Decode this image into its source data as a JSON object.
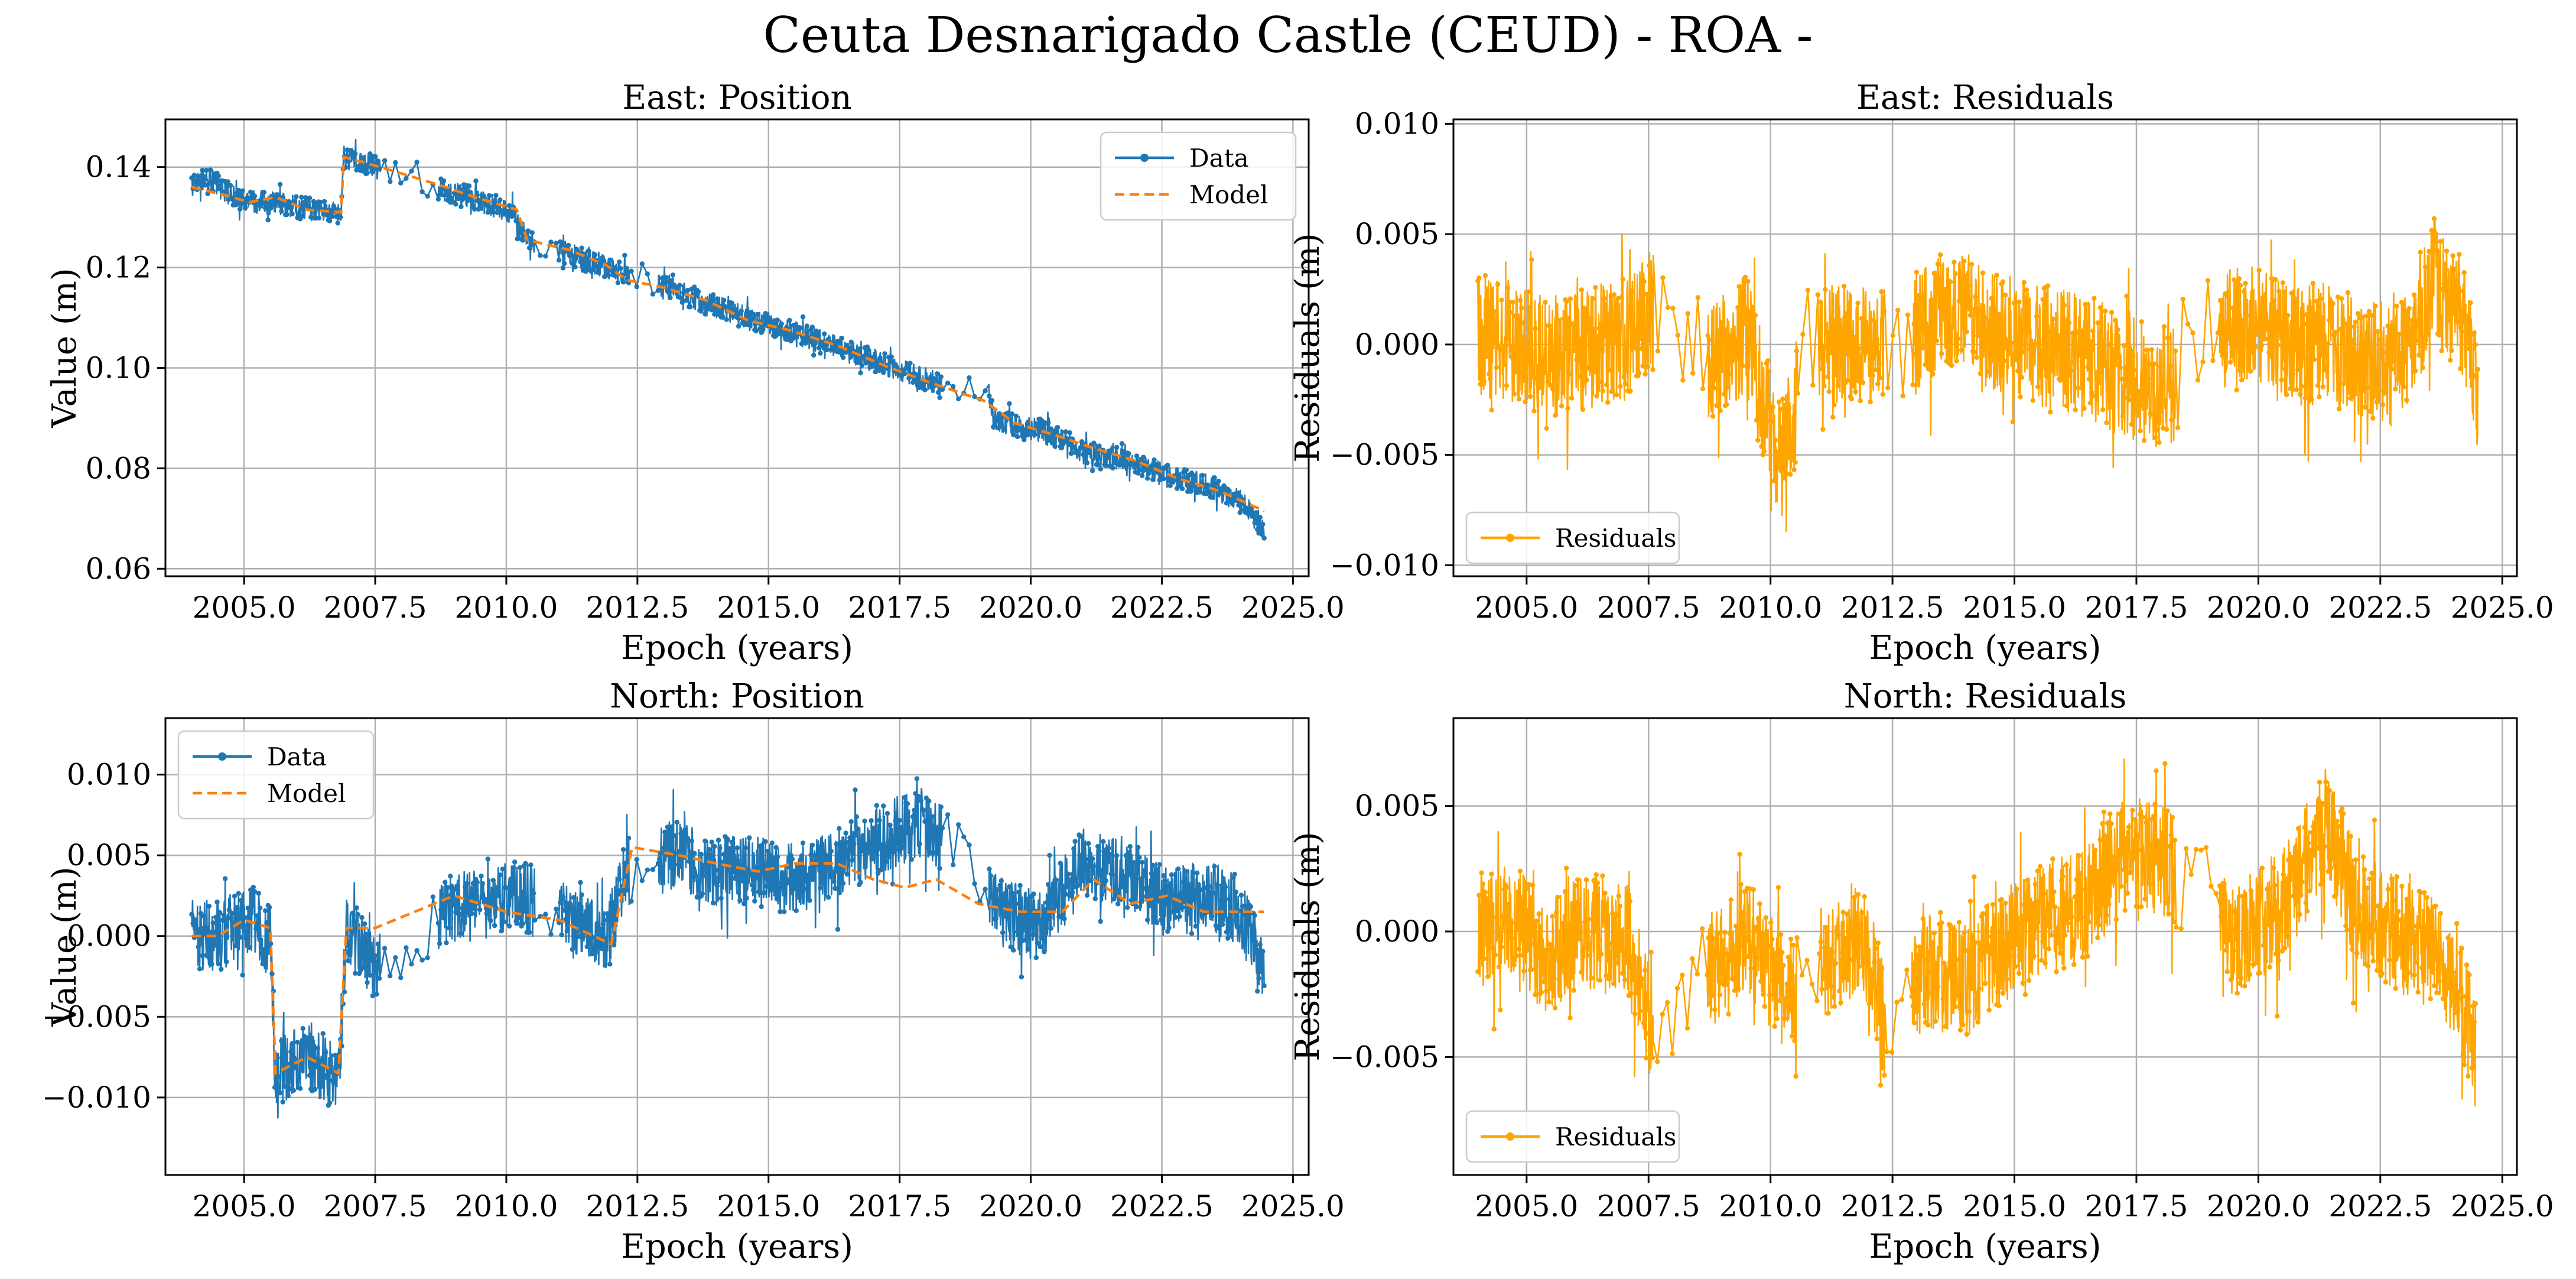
{
  "title": "Ceuta Desnarigado Castle (CEUD) - ROA -",
  "colors": {
    "data": "#1f77b4",
    "model": "#ff7f0e",
    "residuals": "#ffa500",
    "grid": "#b0b0b0",
    "axes": "#000000"
  },
  "chart_data": [
    {
      "id": "east_position",
      "type": "line",
      "title": "East: Position",
      "xlabel": "Epoch (years)",
      "ylabel": "Value (m)",
      "xlim": [
        2003.5,
        2025.3
      ],
      "ylim": [
        0.0585,
        0.1495
      ],
      "xticks": [
        2005.0,
        2007.5,
        2010.0,
        2012.5,
        2015.0,
        2017.5,
        2020.0,
        2022.5,
        2025.0
      ],
      "xticklabels": [
        "2005.0",
        "2007.5",
        "2010.0",
        "2012.5",
        "2015.0",
        "2017.5",
        "2020.0",
        "2022.5",
        "2025.0"
      ],
      "yticks": [
        0.06,
        0.08,
        0.1,
        0.12,
        0.14
      ],
      "yticklabels": [
        "0.06",
        "0.08",
        "0.10",
        "0.12",
        "0.14"
      ],
      "grid": true,
      "legend": {
        "position": "top-right",
        "entries": [
          "Data",
          "Model"
        ]
      },
      "series": [
        {
          "name": "Data",
          "style": "line-dots",
          "color": "#1f77b4",
          "noise": 0.0023,
          "points": [
            [
              2004.0,
              0.1365
            ],
            [
              2004.3,
              0.138
            ],
            [
              2004.8,
              0.134
            ],
            [
              2005.3,
              0.133
            ],
            [
              2005.8,
              0.1325
            ],
            [
              2006.3,
              0.1315
            ],
            [
              2006.85,
              0.1305
            ],
            [
              2006.9,
              0.142
            ],
            [
              2007.4,
              0.1405
            ],
            [
              2008.7,
              0.1355
            ],
            [
              2009.3,
              0.134
            ],
            [
              2010.1,
              0.131
            ],
            [
              2010.4,
              0.1255
            ],
            [
              2011.1,
              0.123
            ],
            [
              2011.8,
              0.1205
            ],
            [
              2012.3,
              0.1185
            ],
            [
              2013.0,
              0.116
            ],
            [
              2013.7,
              0.1135
            ],
            [
              2014.3,
              0.111
            ],
            [
              2015.0,
              0.1085
            ],
            [
              2015.8,
              0.106
            ],
            [
              2016.6,
              0.103
            ],
            [
              2017.4,
              0.1
            ],
            [
              2018.2,
              0.097
            ],
            [
              2019.2,
              0.0945
            ],
            [
              2019.3,
              0.0895
            ],
            [
              2020.2,
              0.0875
            ],
            [
              2021.0,
              0.0835
            ],
            [
              2021.8,
              0.0815
            ],
            [
              2022.6,
              0.0785
            ],
            [
              2023.4,
              0.0765
            ],
            [
              2024.0,
              0.0735
            ],
            [
              2024.45,
              0.068
            ]
          ]
        },
        {
          "name": "Model",
          "style": "dashed",
          "color": "#ff7f0e",
          "noise": 0,
          "points": [
            [
              2004.0,
              0.136
            ],
            [
              2004.6,
              0.1345
            ],
            [
              2005.1,
              0.133
            ],
            [
              2005.6,
              0.134
            ],
            [
              2006.2,
              0.1315
            ],
            [
              2006.85,
              0.131
            ],
            [
              2006.9,
              0.142
            ],
            [
              2007.6,
              0.14
            ],
            [
              2008.7,
              0.1365
            ],
            [
              2009.4,
              0.134
            ],
            [
              2010.2,
              0.1315
            ],
            [
              2010.4,
              0.1255
            ],
            [
              2011.2,
              0.1235
            ],
            [
              2011.9,
              0.1205
            ],
            [
              2012.3,
              0.1175
            ],
            [
              2013.0,
              0.116
            ],
            [
              2013.8,
              0.1135
            ],
            [
              2014.6,
              0.1095
            ],
            [
              2015.4,
              0.1075
            ],
            [
              2016.3,
              0.1045
            ],
            [
              2017.2,
              0.1005
            ],
            [
              2018.1,
              0.097
            ],
            [
              2019.1,
              0.0935
            ],
            [
              2019.7,
              0.089
            ],
            [
              2020.5,
              0.0865
            ],
            [
              2021.2,
              0.084
            ],
            [
              2022.0,
              0.0815
            ],
            [
              2022.8,
              0.078
            ],
            [
              2023.6,
              0.0755
            ],
            [
              2024.45,
              0.0715
            ]
          ]
        }
      ]
    },
    {
      "id": "east_residuals",
      "type": "line",
      "title": "East: Residuals",
      "xlabel": "Epoch (years)",
      "ylabel": "Residuals (m)",
      "xlim": [
        2003.5,
        2025.3
      ],
      "ylim": [
        -0.0105,
        0.0102
      ],
      "xticks": [
        2005.0,
        2007.5,
        2010.0,
        2012.5,
        2015.0,
        2017.5,
        2020.0,
        2022.5,
        2025.0
      ],
      "xticklabels": [
        "2005.0",
        "2007.5",
        "2010.0",
        "2012.5",
        "2015.0",
        "2017.5",
        "2020.0",
        "2022.5",
        "2025.0"
      ],
      "yticks": [
        -0.01,
        -0.005,
        0.0,
        0.005,
        0.01
      ],
      "yticklabels": [
        "−0.010",
        "−0.005",
        "0.000",
        "0.005",
        "0.010"
      ],
      "grid": true,
      "legend": {
        "position": "bottom-left",
        "entries": [
          "Residuals"
        ]
      },
      "series": [
        {
          "name": "Residuals",
          "style": "line-dots",
          "color": "#ffa500",
          "noise": 0.0028,
          "points": [
            [
              2004.0,
              0.0005
            ],
            [
              2004.8,
              0.0
            ],
            [
              2005.6,
              -0.0005
            ],
            [
              2006.4,
              0.0
            ],
            [
              2007.2,
              0.0005
            ],
            [
              2007.5,
              0.0015
            ],
            [
              2008.8,
              -0.001
            ],
            [
              2009.5,
              0.0005
            ],
            [
              2010.2,
              -0.0055
            ],
            [
              2010.8,
              0.0
            ],
            [
              2011.5,
              0.0
            ],
            [
              2012.2,
              0.0
            ],
            [
              2013.0,
              0.0005
            ],
            [
              2013.8,
              0.002
            ],
            [
              2014.5,
              0.0005
            ],
            [
              2015.5,
              0.0
            ],
            [
              2016.5,
              -0.0005
            ],
            [
              2017.3,
              -0.0015
            ],
            [
              2018.2,
              -0.002
            ],
            [
              2019.0,
              0.0005
            ],
            [
              2019.8,
              0.0008
            ],
            [
              2020.6,
              0.0
            ],
            [
              2021.3,
              0.0
            ],
            [
              2022.1,
              -0.0005
            ],
            [
              2022.9,
              -0.001
            ],
            [
              2023.6,
              0.003
            ],
            [
              2024.2,
              0.001
            ],
            [
              2024.5,
              -0.002
            ]
          ]
        }
      ]
    },
    {
      "id": "north_position",
      "type": "line",
      "title": "North: Position",
      "xlabel": "Epoch (years)",
      "ylabel": "Value (m)",
      "xlim": [
        2003.5,
        2025.3
      ],
      "ylim": [
        -0.0148,
        0.0135
      ],
      "xticks": [
        2005.0,
        2007.5,
        2010.0,
        2012.5,
        2015.0,
        2017.5,
        2020.0,
        2022.5,
        2025.0
      ],
      "xticklabels": [
        "2005.0",
        "2007.5",
        "2010.0",
        "2012.5",
        "2015.0",
        "2017.5",
        "2020.0",
        "2022.5",
        "2025.0"
      ],
      "yticks": [
        -0.01,
        -0.005,
        0.0,
        0.005,
        0.01
      ],
      "yticklabels": [
        "−0.010",
        "−0.005",
        "0.000",
        "0.005",
        "0.010"
      ],
      "grid": true,
      "legend": {
        "position": "top-left",
        "entries": [
          "Data",
          "Model"
        ]
      },
      "series": [
        {
          "name": "Data",
          "style": "line-dots",
          "color": "#1f77b4",
          "noise": 0.0022,
          "points": [
            [
              2004.0,
              0.0
            ],
            [
              2004.6,
              0.0
            ],
            [
              2005.1,
              0.0015
            ],
            [
              2005.5,
              -0.0005
            ],
            [
              2005.6,
              -0.0085
            ],
            [
              2006.3,
              -0.0075
            ],
            [
              2006.8,
              -0.009
            ],
            [
              2006.95,
              0.0005
            ],
            [
              2007.5,
              -0.002
            ],
            [
              2008.8,
              0.0015
            ],
            [
              2009.5,
              0.002
            ],
            [
              2010.3,
              0.0025
            ],
            [
              2011.2,
              0.001
            ],
            [
              2011.9,
              -0.0005
            ],
            [
              2012.3,
              0.004
            ],
            [
              2013.2,
              0.005
            ],
            [
              2014.0,
              0.004
            ],
            [
              2014.8,
              0.004
            ],
            [
              2015.5,
              0.0035
            ],
            [
              2016.3,
              0.0045
            ],
            [
              2017.1,
              0.006
            ],
            [
              2017.9,
              0.007
            ],
            [
              2018.6,
              0.0055
            ],
            [
              2019.4,
              0.0015
            ],
            [
              2020.2,
              0.0005
            ],
            [
              2021.0,
              0.0045
            ],
            [
              2021.8,
              0.004
            ],
            [
              2022.6,
              0.002
            ],
            [
              2023.4,
              0.0025
            ],
            [
              2024.0,
              0.0015
            ],
            [
              2024.45,
              -0.0025
            ]
          ]
        },
        {
          "name": "Model",
          "style": "dashed",
          "color": "#ff7f0e",
          "noise": 0,
          "points": [
            [
              2004.0,
              0.0
            ],
            [
              2004.5,
              0.0
            ],
            [
              2005.0,
              0.001
            ],
            [
              2005.5,
              0.0005
            ],
            [
              2005.6,
              -0.0085
            ],
            [
              2006.2,
              -0.0075
            ],
            [
              2006.8,
              -0.0085
            ],
            [
              2006.95,
              0.0005
            ],
            [
              2007.5,
              0.0005
            ],
            [
              2009.0,
              0.0025
            ],
            [
              2010.0,
              0.0015
            ],
            [
              2011.0,
              0.001
            ],
            [
              2012.0,
              -0.0005
            ],
            [
              2012.4,
              0.0055
            ],
            [
              2013.3,
              0.005
            ],
            [
              2014.0,
              0.0045
            ],
            [
              2014.8,
              0.004
            ],
            [
              2015.5,
              0.0045
            ],
            [
              2016.3,
              0.0045
            ],
            [
              2017.0,
              0.0035
            ],
            [
              2017.6,
              0.003
            ],
            [
              2018.2,
              0.0035
            ],
            [
              2019.0,
              0.002
            ],
            [
              2019.8,
              0.0015
            ],
            [
              2020.6,
              0.0015
            ],
            [
              2021.2,
              0.0035
            ],
            [
              2021.9,
              0.002
            ],
            [
              2022.6,
              0.0025
            ],
            [
              2023.3,
              0.0015
            ],
            [
              2024.45,
              0.0015
            ]
          ]
        }
      ]
    },
    {
      "id": "north_residuals",
      "type": "line",
      "title": "North: Residuals",
      "xlabel": "Epoch (years)",
      "ylabel": "Residuals (m)",
      "xlim": [
        2003.5,
        2025.3
      ],
      "ylim": [
        -0.0097,
        0.0085
      ],
      "xticks": [
        2005.0,
        2007.5,
        2010.0,
        2012.5,
        2015.0,
        2017.5,
        2020.0,
        2022.5,
        2025.0
      ],
      "xticklabels": [
        "2005.0",
        "2007.5",
        "2010.0",
        "2012.5",
        "2015.0",
        "2017.5",
        "2020.0",
        "2022.5",
        "2025.0"
      ],
      "yticks": [
        -0.005,
        0.0,
        0.005
      ],
      "yticklabels": [
        "−0.005",
        "0.000",
        "0.005"
      ],
      "grid": true,
      "legend": {
        "position": "bottom-left",
        "entries": [
          "Residuals"
        ]
      },
      "series": [
        {
          "name": "Residuals",
          "style": "line-dots",
          "color": "#ffa500",
          "noise": 0.0023,
          "points": [
            [
              2004.0,
              0.0
            ],
            [
              2004.7,
              0.0005
            ],
            [
              2005.4,
              -0.001
            ],
            [
              2006.2,
              0.0
            ],
            [
              2007.0,
              0.0
            ],
            [
              2007.5,
              -0.0035
            ],
            [
              2008.8,
              -0.0015
            ],
            [
              2009.5,
              0.0
            ],
            [
              2010.3,
              -0.0025
            ],
            [
              2011.2,
              -0.001
            ],
            [
              2011.9,
              0.0
            ],
            [
              2012.4,
              -0.004
            ],
            [
              2013.2,
              -0.0015
            ],
            [
              2014.0,
              -0.002
            ],
            [
              2014.8,
              -0.0005
            ],
            [
              2015.6,
              0.0005
            ],
            [
              2016.4,
              0.001
            ],
            [
              2017.2,
              0.003
            ],
            [
              2018.0,
              0.003
            ],
            [
              2018.8,
              0.0015
            ],
            [
              2019.4,
              -0.0005
            ],
            [
              2020.2,
              0.0005
            ],
            [
              2020.8,
              0.002
            ],
            [
              2021.4,
              0.0045
            ],
            [
              2022.0,
              0.001
            ],
            [
              2022.8,
              0.0
            ],
            [
              2023.6,
              -0.001
            ],
            [
              2024.1,
              -0.002
            ],
            [
              2024.45,
              -0.005
            ]
          ]
        }
      ]
    }
  ]
}
